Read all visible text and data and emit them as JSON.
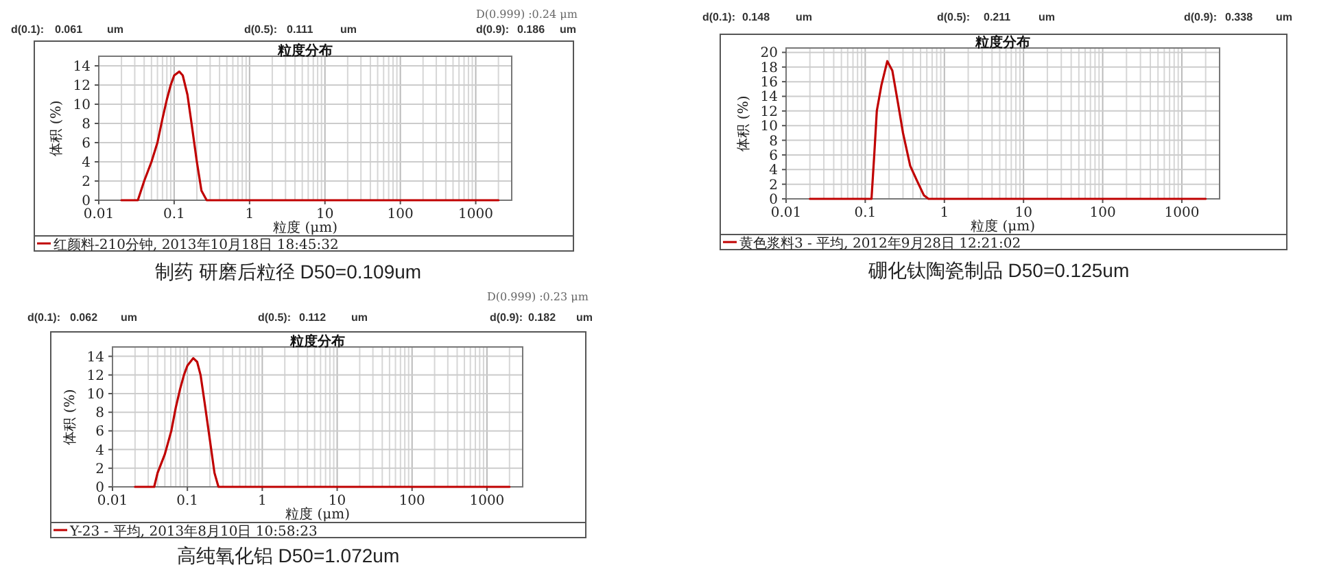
{
  "chart_data": [
    {
      "type": "line",
      "title": "粒度分布",
      "xlabel": "粒度 (μm)",
      "ylabel": "体积 (%)",
      "log": "x",
      "grid": true,
      "legend": "bottom",
      "xlim": [
        0.01,
        3000
      ],
      "xticks": [
        0.01,
        0.1,
        1,
        10,
        100,
        1000
      ],
      "ylim": [
        0,
        15
      ],
      "yticks": [
        0,
        2,
        4,
        6,
        8,
        10,
        12,
        14
      ],
      "annotations": [
        "D(0.999) :0.24 μm",
        "d(0.1):",
        "0.061",
        "um",
        "d(0.5):",
        "0.111",
        "um",
        "d(0.9):",
        "0.186",
        "um",
        "制药 研磨后粒径 D50=0.109um"
      ],
      "series": [
        {
          "name": "红颜料-210分钟, 2013年10月18日 18:45:32",
          "color": "#c00000",
          "x": [
            0.02,
            0.033,
            0.04,
            0.05,
            0.06,
            0.07,
            0.08,
            0.09,
            0.1,
            0.117,
            0.13,
            0.15,
            0.17,
            0.2,
            0.23,
            0.27,
            1,
            10,
            100,
            2000
          ],
          "values": [
            0,
            0,
            2,
            4,
            6,
            8.5,
            10.5,
            12,
            13,
            13.4,
            13,
            11,
            8,
            4,
            1,
            0,
            0,
            0,
            0,
            0
          ]
        }
      ]
    },
    {
      "type": "line",
      "title": "粒度分布",
      "xlabel": "粒度 (μm)",
      "ylabel": "体积 (%)",
      "log": "x",
      "grid": true,
      "legend": "bottom",
      "xlim": [
        0.01,
        3000
      ],
      "xticks": [
        0.01,
        0.1,
        1,
        10,
        100,
        1000
      ],
      "ylim": [
        0,
        20.6
      ],
      "yticks": [
        0,
        2,
        4,
        6,
        8,
        10,
        12,
        14,
        16,
        18,
        20
      ],
      "annotations": [
        "d(0.1):",
        "0.148",
        "um",
        "d(0.5):",
        "0.211",
        "um",
        "d(0.9):",
        "0.338",
        "um",
        "硼化钛陶瓷制品 D50=0.125um"
      ],
      "series": [
        {
          "name": "黄色浆料3 - 平均, 2012年9月28日 12:21:02",
          "color": "#c00000",
          "x": [
            0.02,
            0.12,
            0.13,
            0.14,
            0.16,
            0.19,
            0.22,
            0.26,
            0.3,
            0.37,
            0.45,
            0.55,
            0.63,
            1,
            10,
            100,
            2000
          ],
          "values": [
            0,
            0,
            6,
            12,
            15.5,
            18.8,
            17.5,
            13,
            9,
            4.5,
            2.5,
            0.5,
            0,
            0,
            0,
            0,
            0
          ]
        }
      ]
    },
    {
      "type": "line",
      "title": "粒度分布",
      "xlabel": "粒度 (μm)",
      "ylabel": "体积 (%)",
      "log": "x",
      "grid": true,
      "legend": "bottom",
      "xlim": [
        0.01,
        3000
      ],
      "xticks": [
        0.01,
        0.1,
        1,
        10,
        100,
        1000
      ],
      "ylim": [
        0,
        15
      ],
      "yticks": [
        0,
        2,
        4,
        6,
        8,
        10,
        12,
        14
      ],
      "annotations": [
        "D(0.999) :0.23 μm",
        "d(0.1):",
        "0.062",
        "um",
        "d(0.5):",
        "0.112",
        "um",
        "d(0.9):",
        "0.182",
        "um",
        "高纯氧化铝 D50=1.072um"
      ],
      "series": [
        {
          "name": "Y-23 - 平均, 2013年8月10日 10:58:23",
          "color": "#c00000",
          "x": [
            0.02,
            0.036,
            0.04,
            0.05,
            0.061,
            0.07,
            0.08,
            0.09,
            0.1,
            0.12,
            0.135,
            0.15,
            0.17,
            0.2,
            0.23,
            0.26,
            1,
            10,
            100,
            2000
          ],
          "values": [
            0,
            0,
            1.5,
            3.5,
            6,
            8.5,
            10.5,
            12,
            13,
            13.8,
            13.4,
            12,
            9,
            5,
            1.5,
            0,
            0,
            0,
            0,
            0
          ]
        }
      ]
    }
  ]
}
